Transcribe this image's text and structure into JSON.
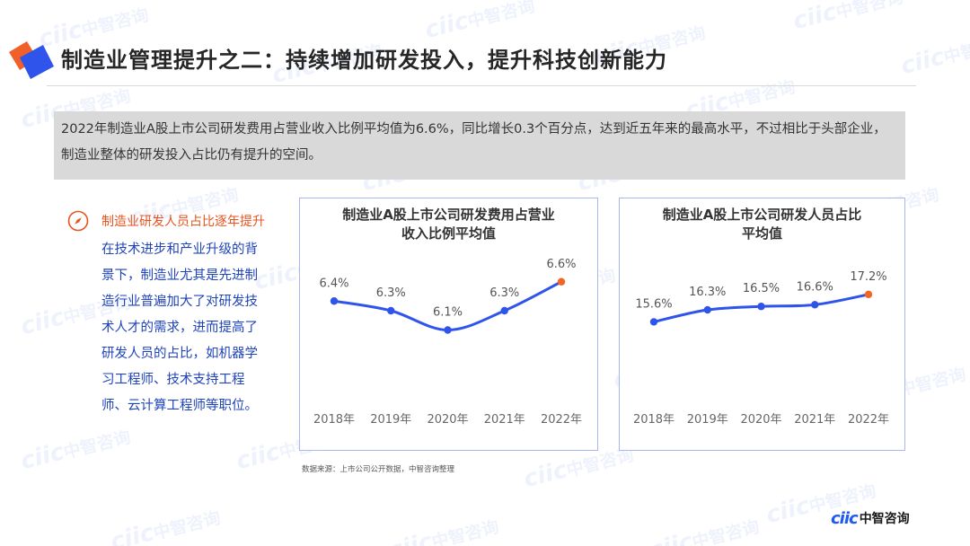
{
  "page": {
    "title": "制造业管理提升之二：持续增加研发投入，提升科技创新能力"
  },
  "summary": {
    "text": "2022年制造业A股上市公司研发费用占营业收入比例平均值为6.6%，同比增长0.3个百分点，达到近五年来的最高水平，不过相比于头部企业，制造业整体的研发投入占比仍有提升的空间。"
  },
  "insight": {
    "icon": "compass-icon",
    "heading": "制造业研发人员占比逐年提升",
    "body": "在技术进步和产业升级的背景下，制造业尤其是先进制造行业普遍加大了对研发技术人才的需求，进而提高了研发人员的占比，如机器学习工程师、技术支持工程师、云计算工程师等职位。"
  },
  "chart_data": [
    {
      "type": "line",
      "title": "制造业A股上市公司研发费用占营业收入比例平均值",
      "categories": [
        "2018年",
        "2019年",
        "2020年",
        "2021年",
        "2022年"
      ],
      "values": [
        6.4,
        6.3,
        6.1,
        6.3,
        6.6
      ],
      "data_labels": [
        "6.4%",
        "6.3%",
        "6.1%",
        "6.3%",
        "6.6%"
      ],
      "ylim": [
        5.9,
        6.7
      ],
      "grid": false,
      "line_color": "#2f54eb",
      "highlight_color": "#f26522"
    },
    {
      "type": "line",
      "title": "制造业A股上市公司研发人员占比平均值",
      "categories": [
        "2018年",
        "2019年",
        "2020年",
        "2021年",
        "2022年"
      ],
      "values": [
        15.6,
        16.3,
        16.5,
        16.6,
        17.2
      ],
      "data_labels": [
        "15.6%",
        "16.3%",
        "16.5%",
        "16.6%",
        "17.2%"
      ],
      "ylim": [
        14.0,
        18.5
      ],
      "grid": false,
      "line_color": "#2f54eb",
      "highlight_color": "#f26522"
    }
  ],
  "chart_titles": [
    [
      "制造业A股上市公司研发费用占营业",
      "收入比例平均值"
    ],
    [
      "制造业A股上市公司研发人员占比",
      "平均值"
    ]
  ],
  "source_note": "数据来源：上市公司公开数据，中智咨询整理",
  "brand": {
    "mark": "ciic",
    "name": "中智咨询",
    "watermark_mark": "ciic",
    "watermark_name": "中智咨询"
  },
  "colors": {
    "accent_blue": "#2f54eb",
    "accent_orange": "#e8531c",
    "body_blue": "#1f43b8",
    "card_border": "#a9b7ef",
    "summary_bg": "#d9d9d9"
  }
}
